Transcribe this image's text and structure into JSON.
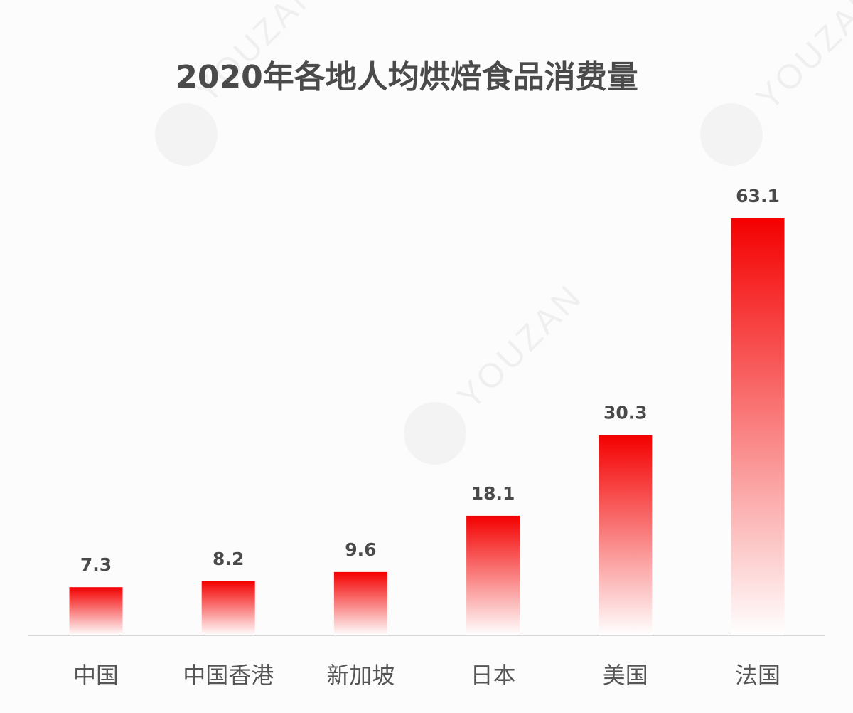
{
  "chart_data": {
    "type": "bar",
    "title": "2020年各地人均烘焙食品消费量",
    "categories": [
      "中国",
      "中国香港",
      "新加坡",
      "日本",
      "美国",
      "法国"
    ],
    "values": [
      7.3,
      8.2,
      9.6,
      18.1,
      30.3,
      63.1
    ],
    "value_labels": [
      "7.3",
      "8.2",
      "9.6",
      "18.1",
      "30.3",
      "63.1"
    ],
    "xlabel": "",
    "ylabel": "",
    "ylim": [
      0,
      63.1
    ],
    "grid": false,
    "legend": "none",
    "colors": {
      "bar_top": "#f40000",
      "bar_bottom": "#ffffff",
      "text": "#4a4a4a",
      "axis": "#d8d8d8"
    }
  },
  "watermark": "YOUZAN"
}
